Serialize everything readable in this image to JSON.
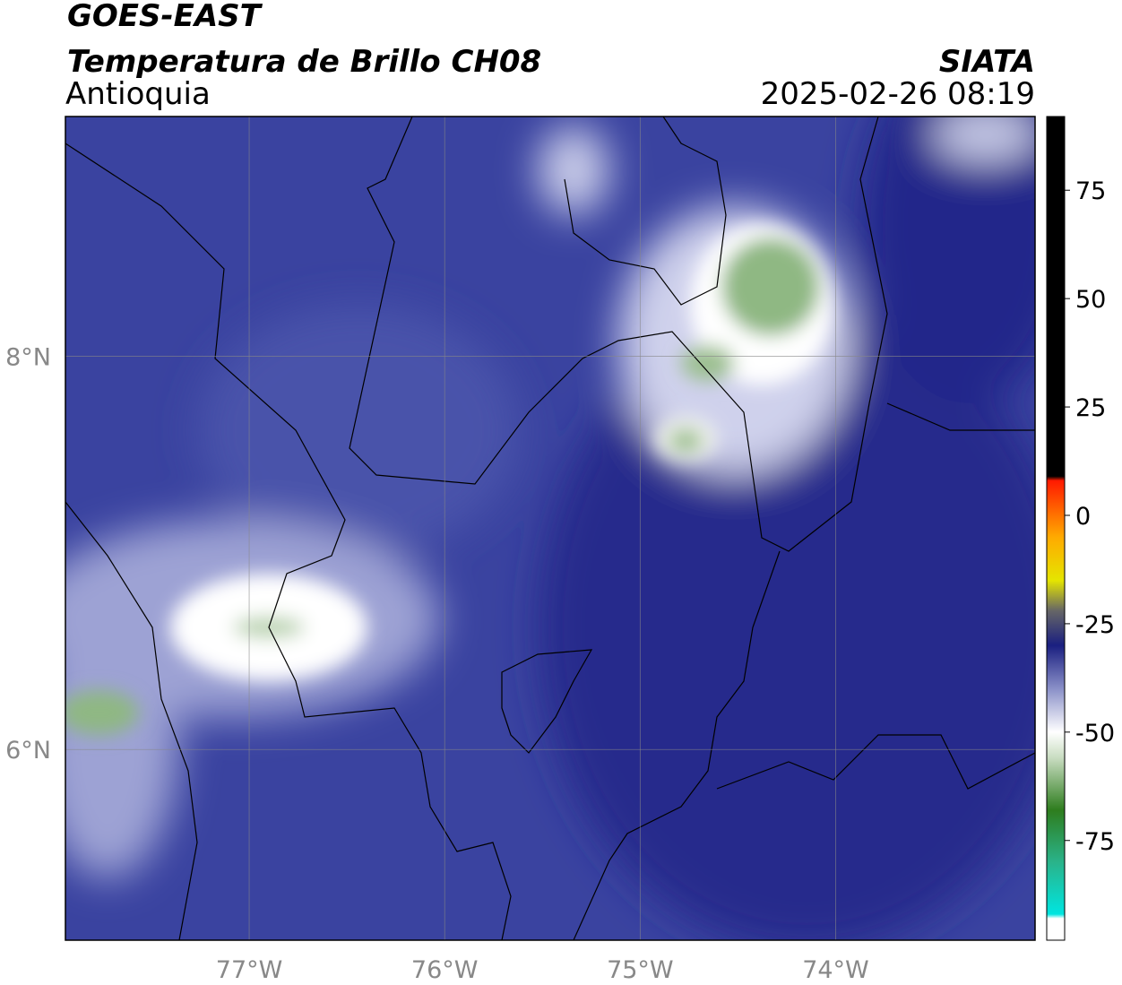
{
  "map": {
    "title": "GOES-EAST",
    "subtitle": "Temperatura de Brillo CH08",
    "region": "Antioquia",
    "source": "SIATA",
    "datetime": "2025-02-26 08:19",
    "xlim": [
      -77.94,
      -72.98
    ],
    "ylim": [
      5.03,
      9.22
    ],
    "xticks": [
      {
        "value": -77,
        "label": "77°W"
      },
      {
        "value": -76,
        "label": "76°W"
      },
      {
        "value": -75,
        "label": "75°W"
      },
      {
        "value": -74,
        "label": "74°W"
      }
    ],
    "yticks": [
      {
        "value": 8,
        "label": "8°N"
      },
      {
        "value": 6,
        "label": "6°N"
      }
    ],
    "grid": true,
    "colorbar": {
      "lim": [
        -98,
        92
      ],
      "ticks": [
        75,
        50,
        25,
        0,
        -25,
        -50,
        -75
      ],
      "stops": [
        {
          "value": -98,
          "color": "#ffffff"
        },
        {
          "value": -93,
          "color": "#ffffff"
        },
        {
          "value": -92,
          "color": "#00e5e0"
        },
        {
          "value": -80,
          "color": "#2ab38a"
        },
        {
          "value": -68,
          "color": "#2e7d1e"
        },
        {
          "value": -56,
          "color": "#c8dcc0"
        },
        {
          "value": -50,
          "color": "#ffffff"
        },
        {
          "value": -40,
          "color": "#8a90c8"
        },
        {
          "value": -30,
          "color": "#1a1f80"
        },
        {
          "value": -22,
          "color": "#666666"
        },
        {
          "value": -15,
          "color": "#e5e500"
        },
        {
          "value": -5,
          "color": "#ffaa00"
        },
        {
          "value": 8,
          "color": "#ff1a00"
        },
        {
          "value": 9,
          "color": "#000000"
        },
        {
          "value": 92,
          "color": "#000000"
        }
      ]
    }
  }
}
